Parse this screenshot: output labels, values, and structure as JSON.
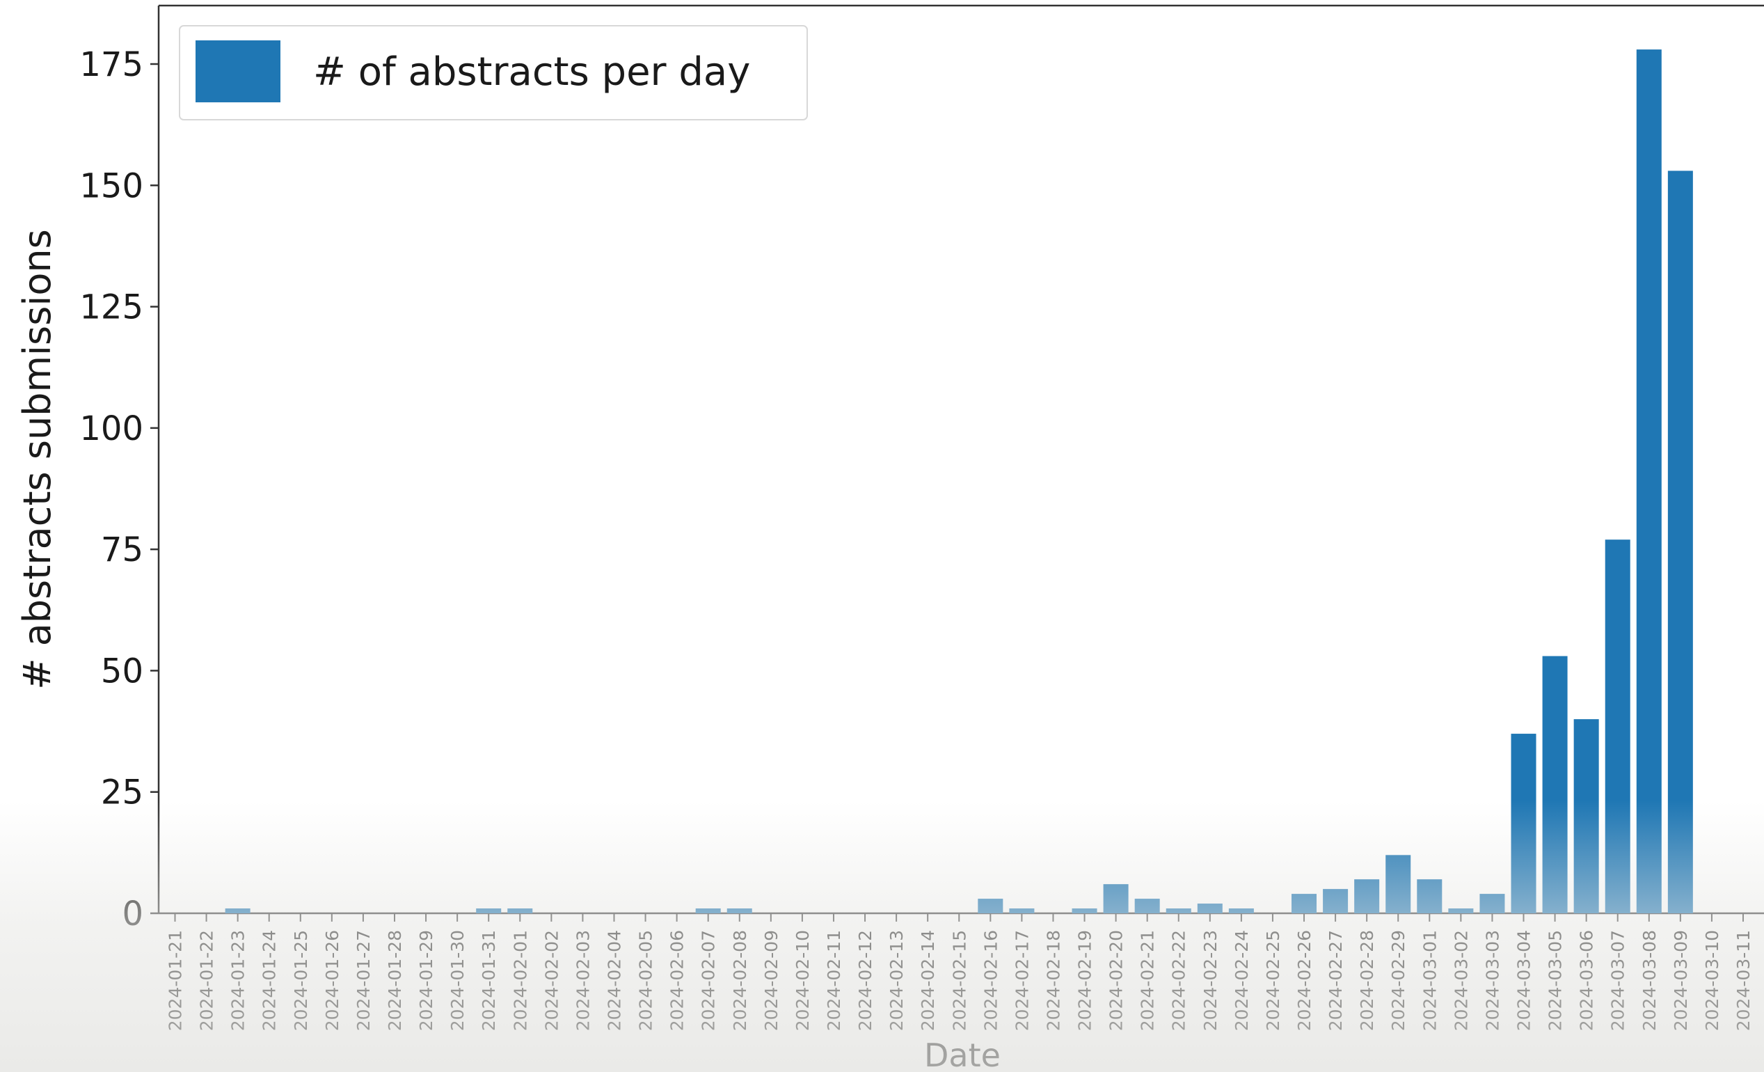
{
  "chart_data": {
    "type": "bar",
    "title": "",
    "xlabel": "Date",
    "ylabel": "# abstracts submissions",
    "ylim": [
      0,
      187
    ],
    "yticks": [
      0,
      25,
      50,
      75,
      100,
      125,
      150,
      175
    ],
    "grid": false,
    "legend_position": "top-left",
    "categories": [
      "2024-01-21",
      "2024-01-22",
      "2024-01-23",
      "2024-01-24",
      "2024-01-25",
      "2024-01-26",
      "2024-01-27",
      "2024-01-28",
      "2024-01-29",
      "2024-01-30",
      "2024-01-31",
      "2024-02-01",
      "2024-02-02",
      "2024-02-03",
      "2024-02-04",
      "2024-02-05",
      "2024-02-06",
      "2024-02-07",
      "2024-02-08",
      "2024-02-09",
      "2024-02-10",
      "2024-02-11",
      "2024-02-12",
      "2024-02-13",
      "2024-02-14",
      "2024-02-15",
      "2024-02-16",
      "2024-02-17",
      "2024-02-18",
      "2024-02-19",
      "2024-02-20",
      "2024-02-21",
      "2024-02-22",
      "2024-02-23",
      "2024-02-24",
      "2024-02-25",
      "2024-02-26",
      "2024-02-27",
      "2024-02-28",
      "2024-02-29",
      "2024-03-01",
      "2024-03-02",
      "2024-03-03",
      "2024-03-04",
      "2024-03-05",
      "2024-03-06",
      "2024-03-07",
      "2024-03-08",
      "2024-03-09",
      "2024-03-10",
      "2024-03-11"
    ],
    "series": [
      {
        "name": "# of abstracts per day",
        "color": "#1f77b4",
        "values": [
          0,
          0,
          1,
          0,
          0,
          0,
          0,
          0,
          0,
          0,
          1,
          1,
          0,
          0,
          0,
          0,
          0,
          1,
          1,
          0,
          0,
          0,
          0,
          0,
          0,
          0,
          3,
          1,
          0,
          1,
          6,
          3,
          1,
          2,
          1,
          0,
          4,
          5,
          7,
          12,
          7,
          1,
          4,
          37,
          53,
          40,
          77,
          178,
          153,
          0,
          0
        ]
      }
    ]
  }
}
